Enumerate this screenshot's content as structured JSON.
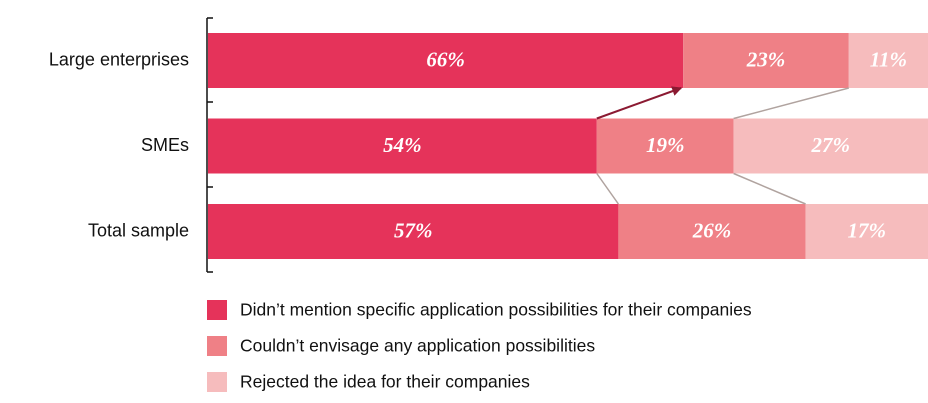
{
  "chart_data": {
    "type": "stacked_barh",
    "categories": [
      "Large enterprises",
      "SMEs",
      "Total sample"
    ],
    "xlim": [
      0,
      100
    ],
    "series": [
      {
        "name": "Didn’t mention specific application possibilities for their companies",
        "color": "#e5335a",
        "values": [
          66,
          54,
          57
        ],
        "value_labels": [
          "66%",
          "54%",
          "57%"
        ]
      },
      {
        "name": "Couldn’t envisage any application possibilities",
        "color": "#ef8086",
        "values": [
          23,
          19,
          26
        ],
        "value_labels": [
          "23%",
          "19%",
          "26%"
        ]
      },
      {
        "name": "Rejected the idea for their companies",
        "color": "#f6bcbd",
        "values": [
          11,
          27,
          17
        ],
        "value_labels": [
          "11%",
          "27%",
          "17%"
        ]
      }
    ]
  }
}
